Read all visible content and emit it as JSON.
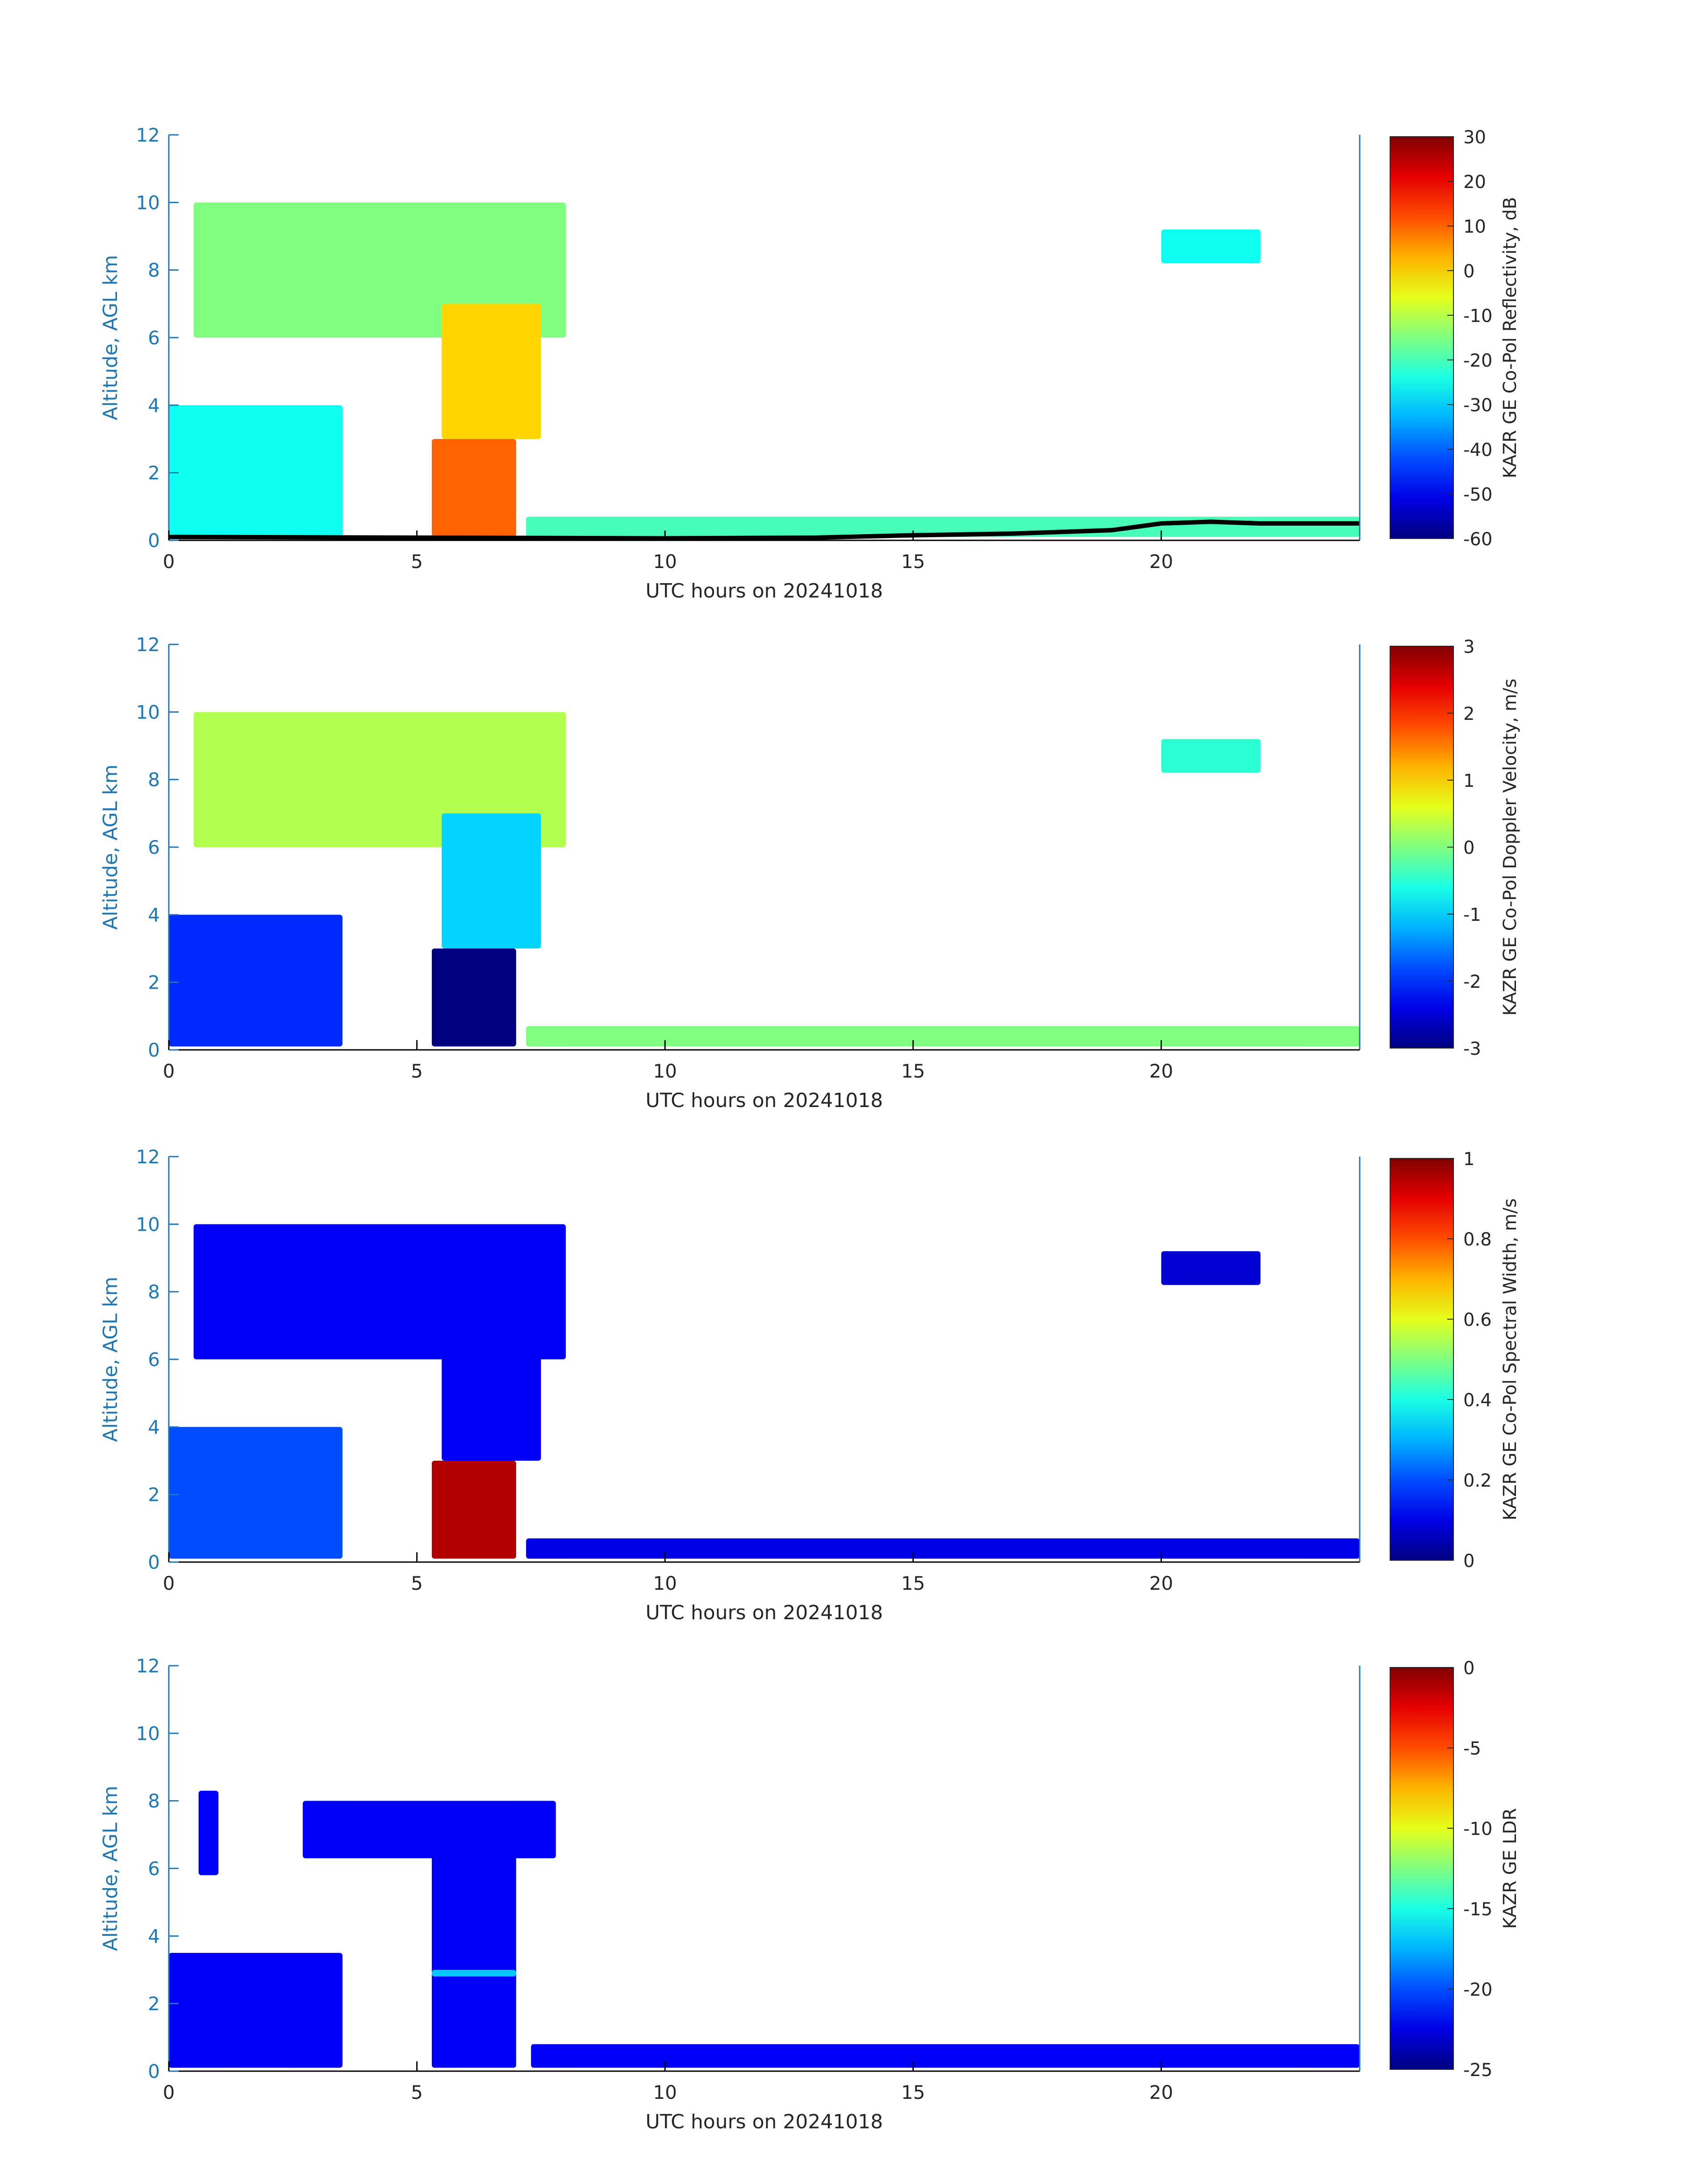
{
  "chart_data": [
    {
      "type": "heatmap",
      "title": "",
      "xlabel": "UTC hours on 20241018",
      "ylabel": "Altitude, AGL km",
      "xlim": [
        0,
        24
      ],
      "ylim": [
        0,
        12
      ],
      "x_ticks": [
        "0",
        "5",
        "10",
        "15",
        "20"
      ],
      "y_ticks": [
        "0",
        "2",
        "4",
        "6",
        "8",
        "10",
        "12"
      ],
      "colorbar": {
        "label": "KAZR GE Co-Pol Reflectivity, dB",
        "min": -60,
        "max": 30,
        "ticks": [
          "-60",
          "-50",
          "-40",
          "-30",
          "-20",
          "-10",
          "0",
          "10",
          "20",
          "30"
        ]
      },
      "has_black_line": true,
      "black_line": {
        "x": [
          0,
          5,
          10,
          13,
          15,
          17,
          19,
          20,
          21,
          22,
          24
        ],
        "y": [
          0.1,
          0.08,
          0.06,
          0.08,
          0.15,
          0.2,
          0.3,
          0.5,
          0.55,
          0.5,
          0.5
        ]
      },
      "regions": [
        {
          "x": [
            0.5,
            8.0
          ],
          "y": [
            6.0,
            10.0
          ],
          "value": -15
        },
        {
          "x": [
            5.3,
            7.0
          ],
          "y": [
            0.1,
            3.0
          ],
          "value": 10
        },
        {
          "x": [
            5.5,
            7.5
          ],
          "y": [
            3.0,
            7.0
          ],
          "value": 0
        },
        {
          "x": [
            0,
            3.5
          ],
          "y": [
            0.1,
            4.0
          ],
          "value": -25
        },
        {
          "x": [
            7.2,
            24
          ],
          "y": [
            0.1,
            0.7
          ],
          "value": -20
        },
        {
          "x": [
            20,
            22
          ],
          "y": [
            8.2,
            9.2
          ],
          "value": -25
        }
      ]
    },
    {
      "type": "heatmap",
      "title": "",
      "xlabel": "UTC hours on 20241018",
      "ylabel": "Altitude, AGL km",
      "xlim": [
        0,
        24
      ],
      "ylim": [
        0,
        12
      ],
      "x_ticks": [
        "0",
        "5",
        "10",
        "15",
        "20"
      ],
      "y_ticks": [
        "0",
        "2",
        "4",
        "6",
        "8",
        "10",
        "12"
      ],
      "colorbar": {
        "label": "KAZR GE Co-Pol Doppler Velocity, m/s",
        "min": -3,
        "max": 3,
        "ticks": [
          "-3",
          "-2",
          "-1",
          "0",
          "1",
          "2",
          "3"
        ]
      },
      "has_black_line": false,
      "regions": [
        {
          "x": [
            0.5,
            8.0
          ],
          "y": [
            6.0,
            10.0
          ],
          "value": 0.3
        },
        {
          "x": [
            5.3,
            7.0
          ],
          "y": [
            0.1,
            3.0
          ],
          "value": -3
        },
        {
          "x": [
            5.5,
            7.5
          ],
          "y": [
            3.0,
            7.0
          ],
          "value": -1
        },
        {
          "x": [
            0,
            3.5
          ],
          "y": [
            0.1,
            4.0
          ],
          "value": -2
        },
        {
          "x": [
            7.2,
            24
          ],
          "y": [
            0.1,
            0.7
          ],
          "value": 0
        },
        {
          "x": [
            20,
            22
          ],
          "y": [
            8.2,
            9.2
          ],
          "value": -0.5
        }
      ]
    },
    {
      "type": "heatmap",
      "title": "",
      "xlabel": "UTC hours on 20241018",
      "ylabel": "Altitude, AGL km",
      "xlim": [
        0,
        24
      ],
      "ylim": [
        0,
        12
      ],
      "x_ticks": [
        "0",
        "5",
        "10",
        "15",
        "20"
      ],
      "y_ticks": [
        "0",
        "2",
        "4",
        "6",
        "8",
        "10",
        "12"
      ],
      "colorbar": {
        "label": "KAZR GE Co-Pol Spectral Width, m/s",
        "min": 0,
        "max": 1,
        "ticks": [
          "0",
          "0.2",
          "0.4",
          "0.6",
          "0.8",
          "1"
        ]
      },
      "has_black_line": false,
      "regions": [
        {
          "x": [
            0.5,
            8.0
          ],
          "y": [
            6.0,
            10.0
          ],
          "value": 0.12
        },
        {
          "x": [
            5.3,
            7.0
          ],
          "y": [
            0.1,
            3.0
          ],
          "value": 0.95
        },
        {
          "x": [
            5.5,
            7.5
          ],
          "y": [
            3.0,
            7.0
          ],
          "value": 0.12
        },
        {
          "x": [
            0,
            3.5
          ],
          "y": [
            0.1,
            4.0
          ],
          "value": 0.2
        },
        {
          "x": [
            7.2,
            24
          ],
          "y": [
            0.1,
            0.7
          ],
          "value": 0.1
        },
        {
          "x": [
            20,
            22
          ],
          "y": [
            8.2,
            9.2
          ],
          "value": 0.08
        }
      ]
    },
    {
      "type": "heatmap",
      "title": "",
      "xlabel": "UTC hours on 20241018",
      "ylabel": "Altitude, AGL km",
      "xlim": [
        0,
        24
      ],
      "ylim": [
        0,
        12
      ],
      "x_ticks": [
        "0",
        "5",
        "10",
        "15",
        "20"
      ],
      "y_ticks": [
        "0",
        "2",
        "4",
        "6",
        "8",
        "10",
        "12"
      ],
      "colorbar": {
        "label": "KAZR GE LDR",
        "min": -25,
        "max": 0,
        "ticks": [
          "-25",
          "-20",
          "-15",
          "-10",
          "-5",
          "0"
        ]
      },
      "has_black_line": false,
      "regions": [
        {
          "x": [
            0.6,
            1.0
          ],
          "y": [
            5.8,
            8.3
          ],
          "value": -22
        },
        {
          "x": [
            2.7,
            7.8
          ],
          "y": [
            6.3,
            8.0
          ],
          "value": -22
        },
        {
          "x": [
            5.3,
            7.0
          ],
          "y": [
            0.1,
            6.5
          ],
          "value": -22
        },
        {
          "x": [
            5.3,
            7.0
          ],
          "y": [
            2.8,
            3.0
          ],
          "value": -17
        },
        {
          "x": [
            0,
            3.5
          ],
          "y": [
            0.1,
            3.5
          ],
          "value": -22
        },
        {
          "x": [
            7.3,
            24
          ],
          "y": [
            0.1,
            0.8
          ],
          "value": -22
        }
      ]
    }
  ]
}
